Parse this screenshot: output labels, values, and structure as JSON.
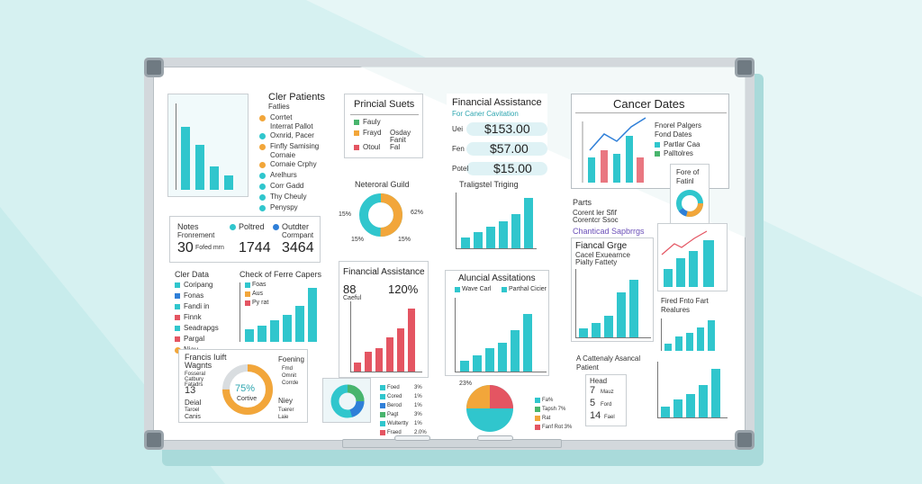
{
  "colors": {
    "teal": "#30c6cd",
    "red": "#e45562",
    "orange": "#f2a63a",
    "blue": "#2f7fd8",
    "green": "#49b56d"
  },
  "patients": {
    "title": "Cler Patients",
    "subtitle": "Fatlies",
    "items": [
      "Corrtet",
      "Interrat Pallot",
      "Oxnrid, Pacer",
      "Finfly Samising",
      "Cornaie",
      "Cornaie Crphy",
      "Arelhurs",
      "Corr Gadd",
      "Thy Cheuly",
      "Penyspy"
    ]
  },
  "principal": {
    "title": "Princial Suets",
    "items": [
      "Fauly",
      "Frayd",
      "Osday",
      "Fanit",
      "Otoul",
      "Fal"
    ]
  },
  "financial1": {
    "title": "Financial Assistance",
    "subtitle": "For Caner Cavitation",
    "rows": [
      {
        "label": "Uei",
        "value": "$153.00"
      },
      {
        "label": "Fen",
        "value": "$57.00"
      },
      {
        "label": "Potel",
        "value": "$15.00"
      }
    ]
  },
  "cancer_dates": {
    "title": "Cancer Dates",
    "legend_title": "Fnorel Palgers",
    "legend_sub": "Fond Dates",
    "legend": [
      "Partlar Caa",
      "Palltolres"
    ]
  },
  "notes": {
    "title": "Notes",
    "subtitle": "Fronrement",
    "big1": "30",
    "big1_label": "Fofed mrn",
    "col2_title": "Poltred",
    "col2_big": "1744",
    "col3_title": "Outdter",
    "col3_sub": "Cormpant",
    "col3_big": "3464"
  },
  "neuronal": {
    "title": "Neteroral Guild",
    "labels": [
      "15%",
      "62%",
      "15%",
      "15%"
    ]
  },
  "trend": {
    "title": "Traligstel Triging"
  },
  "fore": {
    "title": "Fore of",
    "subtitle": "Fatinl"
  },
  "partners": {
    "title": "Parts",
    "lines": [
      "Corent ler Sfif",
      "Corentcr Ssoc"
    ],
    "highlight": "Chanticad Sapbrrgs"
  },
  "clear_data": {
    "title": "Cler Data",
    "items": [
      "Coripang",
      "Fonas",
      "Fandi in",
      "Finnk",
      "Seadrapgs",
      "Pargal",
      "Niay"
    ]
  },
  "check": {
    "title": "Check of Ferre Capers",
    "legend": [
      "Foas",
      "Aus",
      "Py rat"
    ]
  },
  "financial2": {
    "title": "Financial Assistance",
    "left": "88",
    "left_sub": "Caeful",
    "right": "120%"
  },
  "alun": {
    "title": "Aluncial Assitations",
    "legend": [
      "Wave Carl",
      "Parthal Cicier"
    ]
  },
  "fincal_gage": {
    "title": "Fiancal Grge",
    "lines": [
      "Cacel Exuearnce",
      "Pialty Fattety"
    ]
  },
  "fund": {
    "title": "Fired Fnto Fart",
    "subtitle": "Realures"
  },
  "francis": {
    "title": "Francis Iuift",
    "subtitle": "Wagnts",
    "items": [
      "Fosseral",
      "Catbury",
      "Fatadrs"
    ],
    "big": "13",
    "donut_value": "75%",
    "donut_label": "Cortive",
    "bottom_left": [
      "Deial",
      "Taroel",
      "Canis"
    ],
    "right_title": "Foening",
    "right_items": [
      "Fmd",
      "Omnit",
      "Corrde"
    ],
    "right_bottom": [
      "Niey",
      "Tuerer",
      "Laie"
    ]
  },
  "legend_small": {
    "rows": [
      {
        "label": "Foed",
        "value": "3%"
      },
      {
        "label": "Cored",
        "value": "1%"
      },
      {
        "label": "Berod",
        "value": "1%"
      },
      {
        "label": "Pagt",
        "value": "3%"
      },
      {
        "label": "Wultertty",
        "value": "1%"
      },
      {
        "label": "Fraed",
        "value": "2.0%"
      }
    ]
  },
  "pie2": {
    "label": "23%",
    "rows": [
      "Fa%",
      "Tapsh 7%",
      "Rat",
      "Fanf Rot 3%"
    ]
  },
  "patient_asseal": {
    "title": "A Cattenaly Asancal",
    "subtitle": "Patient",
    "head": "Head",
    "rows": [
      {
        "n": "7",
        "label": "Mauz"
      },
      {
        "n": "5",
        "label": "Ford"
      },
      {
        "n": "14",
        "label": "Fael"
      }
    ]
  }
}
